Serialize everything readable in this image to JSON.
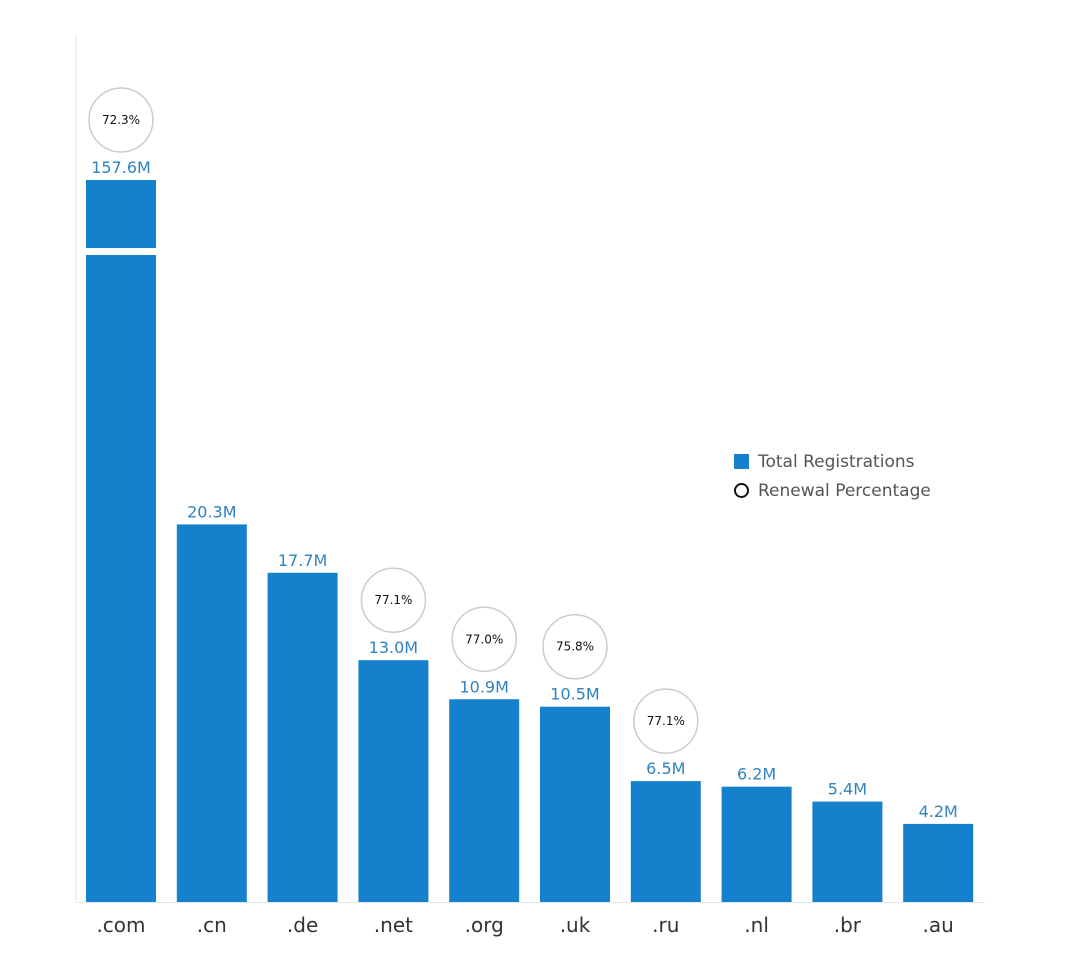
{
  "chart_data": {
    "type": "bar",
    "categories": [
      ".com",
      ".cn",
      ".de",
      ".net",
      ".org",
      ".uk",
      ".ru",
      ".nl",
      ".br",
      ".au"
    ],
    "series": [
      {
        "name": "Total Registrations",
        "values": [
          157.6,
          20.3,
          17.7,
          13.0,
          10.9,
          10.5,
          6.5,
          6.2,
          5.4,
          4.2
        ],
        "labels": [
          "157.6M",
          "20.3M",
          "17.7M",
          "13.0M",
          "10.9M",
          "10.5M",
          "6.5M",
          "6.2M",
          "5.4M",
          "4.2M"
        ]
      },
      {
        "name": "Renewal Percentage",
        "values": [
          72.3,
          null,
          null,
          77.1,
          77.0,
          75.8,
          77.1,
          null,
          null,
          null
        ],
        "labels": [
          "72.3%",
          null,
          null,
          "77.1%",
          "77.0%",
          "75.8%",
          "77.1%",
          null,
          null,
          null
        ]
      }
    ],
    "axis_break": true,
    "grid": false,
    "legend_position": "right",
    "colors": {
      "bar": "#1580cc",
      "value_label": "#2f83c0",
      "circle": "#cccccc"
    }
  },
  "legend": {
    "items": [
      {
        "label": "Total Registrations",
        "shape": "square"
      },
      {
        "label": "Renewal Percentage",
        "shape": "circle"
      }
    ]
  }
}
